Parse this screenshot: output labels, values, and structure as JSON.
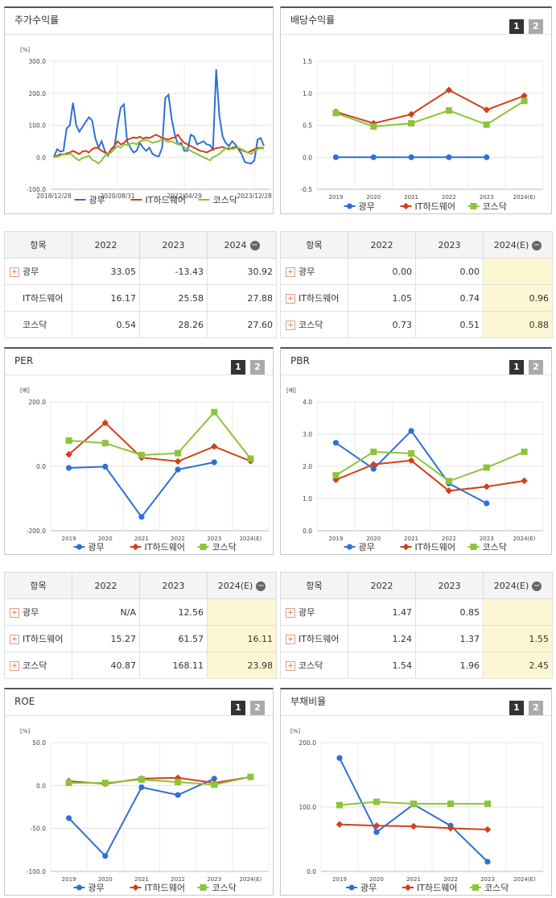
{
  "series_names": [
    "광무",
    "IT하드웨어",
    "코스닥"
  ],
  "colors": {
    "s0": "#2f6fd6",
    "s1": "#d1401a",
    "s2": "#8cc43a"
  },
  "tabs": {
    "one": "1",
    "two": "2"
  },
  "panels": {
    "stock": {
      "title": "주가수익률"
    },
    "dividend": {
      "title": "배당수익률"
    },
    "per": {
      "title": "PER"
    },
    "pbr": {
      "title": "PBR"
    },
    "roe": {
      "title": "ROE"
    },
    "debt": {
      "title": "부채비율"
    }
  },
  "tables": {
    "stock": {
      "header": [
        "항목",
        "2022",
        "2023",
        "2024"
      ],
      "rows": [
        {
          "label": "광무",
          "values": [
            "33.05",
            "-13.43",
            "30.92"
          ]
        },
        {
          "label": "IT하드웨어",
          "values": [
            "16.17",
            "25.58",
            "27.88"
          ]
        },
        {
          "label": "코스닥",
          "values": [
            "0.54",
            "28.26",
            "27.60"
          ]
        }
      ]
    },
    "dividend": {
      "header": [
        "항목",
        "2022",
        "2023",
        "2024(E)"
      ],
      "rows": [
        {
          "label": "광무",
          "values": [
            "0.00",
            "0.00",
            ""
          ]
        },
        {
          "label": "IT하드웨어",
          "values": [
            "1.05",
            "0.74",
            "0.96"
          ]
        },
        {
          "label": "코스닥",
          "values": [
            "0.73",
            "0.51",
            "0.88"
          ]
        }
      ]
    },
    "per": {
      "header": [
        "항목",
        "2022",
        "2023",
        "2024(E)"
      ],
      "rows": [
        {
          "label": "광무",
          "values": [
            "N/A",
            "12.56",
            ""
          ]
        },
        {
          "label": "IT하드웨어",
          "values": [
            "15.27",
            "61.57",
            "16.11"
          ]
        },
        {
          "label": "코스닥",
          "values": [
            "40.87",
            "168.11",
            "23.98"
          ]
        }
      ]
    },
    "pbr": {
      "header": [
        "항목",
        "2022",
        "2023",
        "2024(E)"
      ],
      "rows": [
        {
          "label": "광무",
          "values": [
            "1.47",
            "0.85",
            ""
          ]
        },
        {
          "label": "IT하드웨어",
          "values": [
            "1.24",
            "1.37",
            "1.55"
          ]
        },
        {
          "label": "코스닥",
          "values": [
            "1.54",
            "1.96",
            "2.45"
          ]
        }
      ]
    }
  },
  "chart_data": [
    {
      "id": "stock",
      "type": "line",
      "ylabel": "[%]",
      "ylim": [
        -100,
        300
      ],
      "yticks": [
        "300.0",
        "200.0",
        "100.0",
        "0.0",
        "-100.0"
      ],
      "xticks": [
        "2018/12/28",
        "2020/08/31",
        "2022/04/29",
        "2023/12/28"
      ],
      "series": [
        {
          "name": "광무",
          "values": [
            0,
            25,
            18,
            20,
            90,
            100,
            170,
            100,
            80,
            95,
            110,
            125,
            115,
            60,
            30,
            50,
            20,
            5,
            25,
            30,
            100,
            155,
            165,
            50,
            30,
            15,
            20,
            45,
            30,
            20,
            30,
            10,
            5,
            3,
            30,
            185,
            195,
            120,
            70,
            40,
            45,
            20,
            20,
            70,
            65,
            40,
            45,
            50,
            40,
            38,
            25,
            275,
            130,
            65,
            45,
            35,
            50,
            40,
            25,
            10,
            -15,
            -18,
            -20,
            -10,
            55,
            60,
            35
          ]
        },
        {
          "name": "IT하드웨어",
          "values": [
            0,
            5,
            10,
            8,
            12,
            15,
            20,
            15,
            10,
            18,
            20,
            15,
            25,
            30,
            28,
            20,
            15,
            10,
            25,
            35,
            50,
            40,
            45,
            55,
            58,
            62,
            60,
            64,
            58,
            62,
            60,
            65,
            70,
            66,
            60,
            58,
            55,
            60,
            62,
            70,
            55,
            45,
            40,
            35,
            30,
            25,
            20,
            18,
            15,
            20,
            25,
            28,
            30,
            32,
            28,
            25,
            30,
            32,
            26,
            22,
            18,
            15,
            20,
            25,
            28,
            30,
            28
          ]
        },
        {
          "name": "코스닥",
          "values": [
            0,
            2,
            5,
            10,
            8,
            12,
            5,
            -5,
            -10,
            -2,
            0,
            5,
            -8,
            -12,
            -20,
            -10,
            5,
            10,
            15,
            25,
            35,
            30,
            40,
            38,
            42,
            45,
            40,
            50,
            52,
            55,
            50,
            45,
            48,
            50,
            55,
            52,
            48,
            50,
            45,
            40,
            38,
            30,
            25,
            20,
            15,
            10,
            5,
            0,
            -5,
            -10,
            0,
            5,
            10,
            20,
            28,
            30,
            25,
            28,
            30,
            25,
            20,
            15,
            10,
            20,
            25,
            28,
            27
          ]
        }
      ]
    },
    {
      "id": "dividend",
      "type": "line",
      "ylim": [
        -0.5,
        1.5
      ],
      "yticks": [
        "1.5",
        "1.0",
        "0.5",
        "0.0",
        "-0.5"
      ],
      "xticks": [
        "2019",
        "2020",
        "2021",
        "2022",
        "2023",
        "2024(E)"
      ],
      "series": [
        {
          "name": "광무",
          "values": [
            0,
            0,
            0,
            0,
            0,
            null
          ]
        },
        {
          "name": "IT하드웨어",
          "values": [
            0.71,
            0.53,
            0.67,
            1.05,
            0.74,
            0.96
          ]
        },
        {
          "name": "코스닥",
          "values": [
            0.69,
            0.48,
            0.53,
            0.73,
            0.51,
            0.88
          ]
        }
      ]
    },
    {
      "id": "per",
      "type": "line",
      "ylabel": "[배]",
      "ylim": [
        -200,
        200
      ],
      "yticks": [
        "200.0",
        "0.0",
        "-200.0"
      ],
      "xticks": [
        "2019",
        "2020",
        "2021",
        "2022",
        "2023",
        "2024(E)"
      ],
      "series": [
        {
          "name": "광무",
          "values": [
            -5,
            -1,
            -157,
            -10,
            12.56,
            null
          ]
        },
        {
          "name": "IT하드웨어",
          "values": [
            37,
            135,
            27,
            15.27,
            61.57,
            16.11
          ]
        },
        {
          "name": "코스닥",
          "values": [
            80,
            72,
            35,
            40.87,
            168.11,
            23.98
          ]
        }
      ]
    },
    {
      "id": "pbr",
      "type": "line",
      "ylabel": "[배]",
      "ylim": [
        0,
        4
      ],
      "yticks": [
        "4.0",
        "3.0",
        "2.0",
        "1.0",
        "0.0"
      ],
      "xticks": [
        "2019",
        "2020",
        "2021",
        "2022",
        "2023",
        "2024(E)"
      ],
      "series": [
        {
          "name": "광무",
          "values": [
            2.73,
            1.92,
            3.1,
            1.47,
            0.85,
            null
          ]
        },
        {
          "name": "IT하드웨어",
          "values": [
            1.58,
            2.06,
            2.18,
            1.24,
            1.37,
            1.55
          ]
        },
        {
          "name": "코스닥",
          "values": [
            1.72,
            2.45,
            2.4,
            1.54,
            1.96,
            2.45
          ]
        }
      ]
    },
    {
      "id": "roe",
      "type": "line",
      "ylabel": "[%]",
      "ylim": [
        -100,
        50
      ],
      "yticks": [
        "50.0",
        "0.0",
        "-50.0",
        "-100.0"
      ],
      "xticks": [
        "2019",
        "2020",
        "2021",
        "2022",
        "2023",
        "2024(E)"
      ],
      "series": [
        {
          "name": "광무",
          "values": [
            -38,
            -82,
            -2,
            -11,
            8,
            null
          ]
        },
        {
          "name": "IT하드웨어",
          "values": [
            5,
            2,
            8,
            9,
            3,
            10
          ]
        },
        {
          "name": "코스닥",
          "values": [
            3,
            3,
            7,
            4,
            1,
            10
          ]
        }
      ]
    },
    {
      "id": "debt",
      "type": "line",
      "ylabel": "[%]",
      "ylim": [
        0,
        200
      ],
      "yticks": [
        "200.0",
        "100.0",
        "0.0"
      ],
      "xticks": [
        "2019",
        "2020",
        "2021",
        "2022",
        "2023",
        "2024(E)"
      ],
      "series": [
        {
          "name": "광무",
          "values": [
            176,
            61,
            104,
            71,
            15,
            null
          ]
        },
        {
          "name": "IT하드웨어",
          "values": [
            73,
            71,
            70,
            67,
            65,
            null
          ]
        },
        {
          "name": "코스닥",
          "values": [
            103,
            108,
            105,
            105,
            105,
            null
          ]
        }
      ]
    }
  ]
}
